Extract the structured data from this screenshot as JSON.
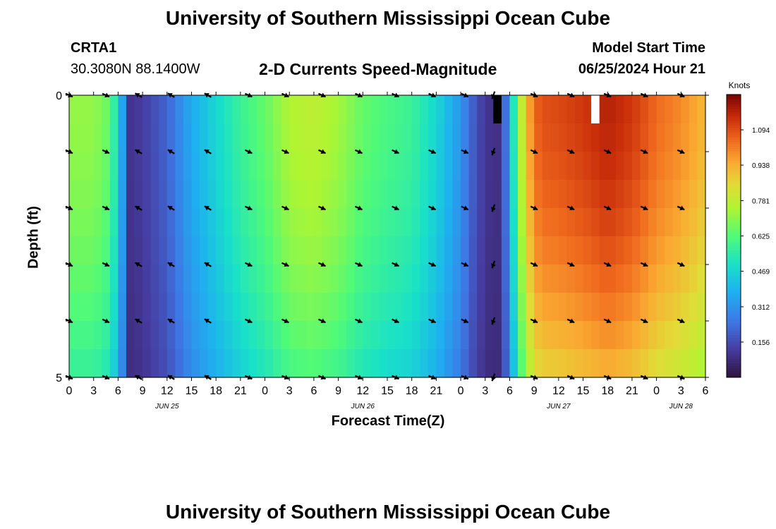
{
  "page": {
    "title_top": "University of Southern Mississippi Ocean Cube",
    "title_bottom": "University of Southern Mississippi Ocean Cube",
    "station": "CRTA1",
    "coords": "30.3080N  88.1400W",
    "product": "2-D Currents Speed-Magnitude",
    "model_label": "Model Start Time",
    "model_time": "06/25/2024 Hour 21"
  },
  "chart_data": {
    "type": "heatmap",
    "title": "2-D Currents Speed-Magnitude",
    "xlabel": "Forecast Time(Z)",
    "ylabel": "Depth (ft)",
    "y_ticks": [
      "0",
      "5"
    ],
    "ylim": [
      0,
      5
    ],
    "x_ticks": [
      "0",
      "3",
      "6",
      "9",
      "12",
      "15",
      "18",
      "21",
      "0",
      "3",
      "6",
      "9",
      "12",
      "15",
      "18",
      "21",
      "0",
      "3",
      "6",
      "9",
      "12",
      "15",
      "18",
      "21",
      "0",
      "3",
      "6"
    ],
    "date_labels": [
      {
        "label": "JUN 25",
        "hour_index": 12
      },
      {
        "label": "JUN 26",
        "hour_index": 36
      },
      {
        "label": "JUN 27",
        "hour_index": 60
      },
      {
        "label": "JUN 28",
        "hour_index": 75
      }
    ],
    "colorbar": {
      "label": "Knots",
      "ticks": [
        "0.156",
        "0.312",
        "0.469",
        "0.625",
        "0.781",
        "0.938",
        "1.094"
      ],
      "range": [
        0.0,
        1.25
      ]
    },
    "hours_start": 0,
    "hours_end": 78,
    "depth_layers": 10,
    "speed_profile_hours": [
      0,
      3,
      5,
      6,
      7.5,
      9,
      12,
      15,
      18,
      21,
      24,
      27,
      30,
      33,
      36,
      39,
      42,
      45,
      48,
      50,
      52,
      53,
      54,
      55,
      56,
      57,
      58,
      60,
      63,
      66,
      69,
      72,
      75,
      78
    ],
    "speed_profile_values": [
      0.68,
      0.68,
      0.62,
      0.45,
      0.1,
      0.12,
      0.2,
      0.35,
      0.45,
      0.55,
      0.62,
      0.72,
      0.74,
      0.7,
      0.62,
      0.58,
      0.55,
      0.45,
      0.3,
      0.15,
      0.08,
      0.1,
      0.35,
      0.65,
      0.85,
      1.0,
      1.04,
      1.05,
      1.08,
      1.12,
      1.08,
      1.0,
      0.95,
      0.88
    ],
    "surface_speed_offset": 0.05,
    "bottom_speed_offset": -0.15,
    "missing_cells": [
      {
        "hour": 52,
        "layer": 0,
        "color": "#000000"
      },
      {
        "hour": 64,
        "layer": 0,
        "color": "#ffffff"
      }
    ],
    "vector_hours": [
      0,
      4.5,
      8.5,
      12.5,
      17,
      22,
      26.5,
      31,
      35.5,
      40,
      44.5,
      48.5,
      52,
      57,
      61.5,
      66,
      70.5,
      75
    ],
    "vector_depths": [
      0,
      1,
      2,
      3,
      4,
      5
    ],
    "vector_directions_deg": [
      115,
      115,
      300,
      300,
      300,
      115,
      115,
      115,
      115,
      115,
      115,
      115,
      200,
      115,
      115,
      115,
      115,
      115
    ]
  }
}
